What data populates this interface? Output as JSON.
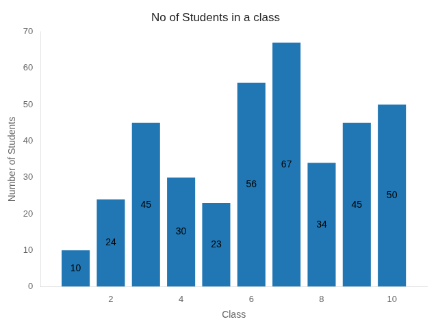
{
  "chart_data": {
    "type": "bar",
    "title": "No of Students in a class",
    "xlabel": "Class",
    "ylabel": "Number of Students",
    "x": [
      1,
      2,
      3,
      4,
      5,
      6,
      7,
      8,
      9,
      10
    ],
    "values": [
      10,
      24,
      45,
      30,
      23,
      56,
      67,
      34,
      45,
      50
    ],
    "color": "#2077B4",
    "xlim": [
      0,
      11
    ],
    "xticks": [
      2,
      4,
      6,
      8,
      10
    ],
    "ylim": [
      0,
      70
    ],
    "yticks": [
      0,
      10,
      20,
      30,
      40,
      50,
      60,
      70
    ],
    "grid": false,
    "data_labels": true
  }
}
